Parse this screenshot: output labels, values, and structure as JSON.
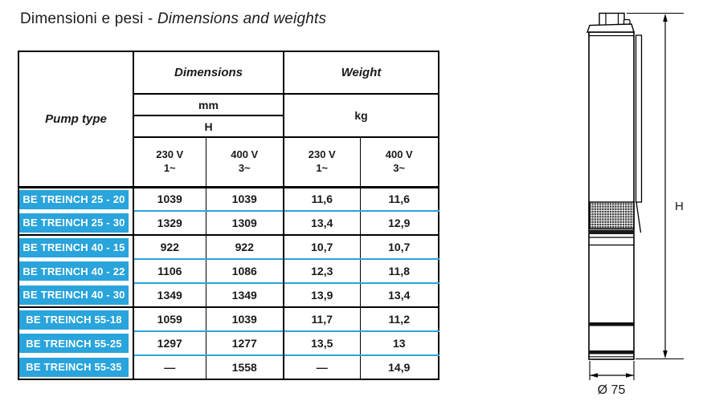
{
  "title": {
    "regular": "Dimensioni e pesi - ",
    "italic": "Dimensions and weights"
  },
  "table": {
    "pump_type_label": "Pump type",
    "dimensions_label": "Dimensions",
    "weight_label": "Weight",
    "mm_label": "mm",
    "h_label": "H",
    "kg_label": "kg",
    "volt_headers": [
      {
        "voltage": "230 V",
        "phase": "1~"
      },
      {
        "voltage": "400 V",
        "phase": "3~"
      },
      {
        "voltage": "230 V",
        "phase": "1~"
      },
      {
        "voltage": "400 V",
        "phase": "3~"
      }
    ],
    "rows": [
      {
        "pump": "BE TREINCH 25 - 20",
        "values": [
          "1039",
          "1039",
          "11,6",
          "11,6"
        ],
        "group_start": true
      },
      {
        "pump": "BE TREINCH 25 - 30",
        "values": [
          "1329",
          "1309",
          "13,4",
          "12,9"
        ],
        "group_start": false
      },
      {
        "pump": "BE TREINCH 40 - 15",
        "values": [
          "922",
          "922",
          "10,7",
          "10,7"
        ],
        "group_start": true
      },
      {
        "pump": "BE TREINCH 40 - 22",
        "values": [
          "1106",
          "1086",
          "12,3",
          "11,8"
        ],
        "group_start": false
      },
      {
        "pump": "BE TREINCH 40 - 30",
        "values": [
          "1349",
          "1349",
          "13,9",
          "13,4"
        ],
        "group_start": false
      },
      {
        "pump": "BE TREINCH 55-18",
        "values": [
          "1059",
          "1039",
          "11,7",
          "11,2"
        ],
        "group_start": true
      },
      {
        "pump": "BE TREINCH 55-25",
        "values": [
          "1297",
          "1277",
          "13,5",
          "13"
        ],
        "group_start": false
      },
      {
        "pump": "BE TREINCH 55-35",
        "values": [
          "—",
          "1558",
          "—",
          "14,9"
        ],
        "group_start": false
      }
    ]
  },
  "drawing": {
    "height_label": "H",
    "diameter_label": "Ø 75"
  },
  "colors": {
    "row_blue": "#29A4DC",
    "header_gray": "#7A7A7A"
  }
}
